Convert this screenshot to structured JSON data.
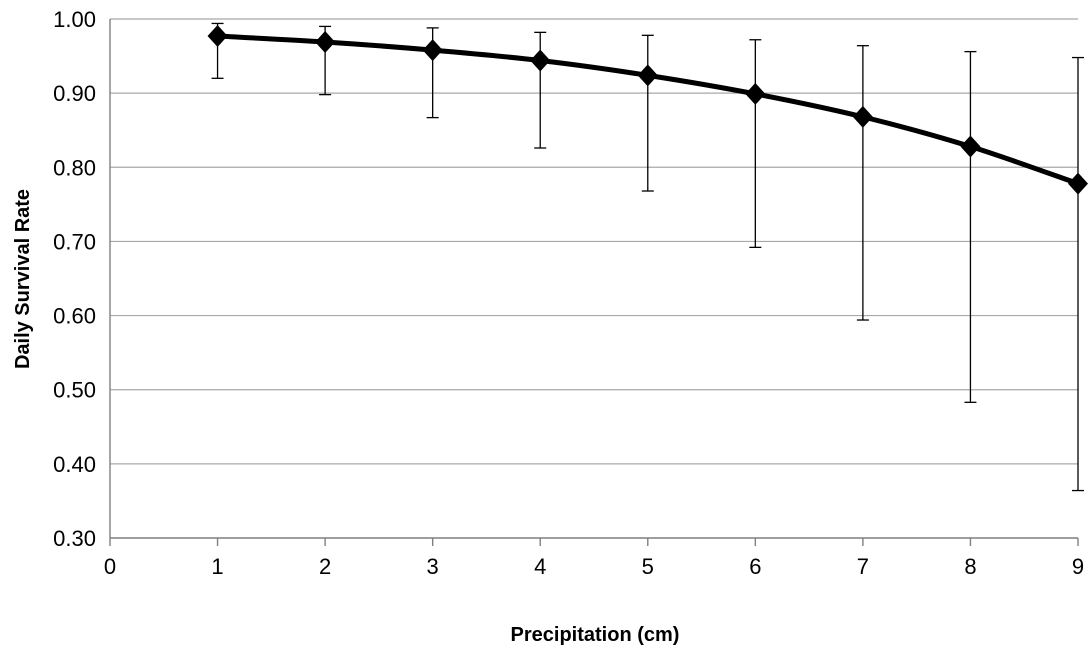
{
  "chart_data": {
    "type": "line",
    "xlabel": "Precipitation (cm)",
    "ylabel": "Daily Survival Rate",
    "xlim": [
      0,
      9
    ],
    "ylim": [
      0.3,
      1.0
    ],
    "x_ticks": [
      "0",
      "1",
      "2",
      "3",
      "4",
      "5",
      "6",
      "7",
      "8",
      "9"
    ],
    "y_ticks": [
      "0.30",
      "0.40",
      "0.50",
      "0.60",
      "0.70",
      "0.80",
      "0.90",
      "1.00"
    ],
    "grid": "horizontal",
    "series": [
      {
        "x": [
          1,
          2,
          3,
          4,
          5,
          6,
          7,
          8,
          9
        ],
        "y": [
          0.977,
          0.969,
          0.958,
          0.944,
          0.924,
          0.899,
          0.868,
          0.828,
          0.778
        ],
        "error_low": [
          0.92,
          0.898,
          0.867,
          0.826,
          0.768,
          0.692,
          0.594,
          0.483,
          0.364
        ],
        "error_high": [
          0.994,
          0.99,
          0.988,
          0.982,
          0.978,
          0.972,
          0.964,
          0.956,
          0.948
        ],
        "marker": "diamond",
        "color": "#000000"
      }
    ]
  }
}
